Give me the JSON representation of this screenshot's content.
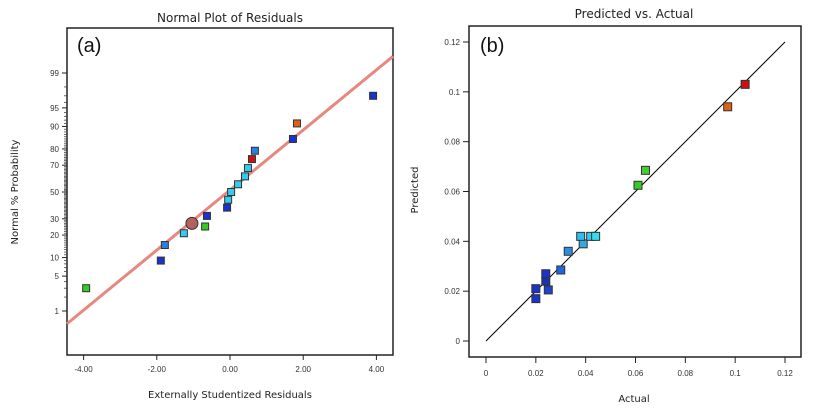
{
  "chart_data": [
    {
      "type": "scatter",
      "panel_label": "(a)",
      "title": "Normal Plot of Residuals",
      "xlabel": "Externally Studentized Residuals",
      "ylabel": "Normal % Probability",
      "xlim": [
        -4.4,
        4.4
      ],
      "x_ticks": [
        -4,
        -2,
        0,
        2,
        4
      ],
      "x_tick_labels": [
        "-4.00",
        "-2.00",
        "0.00",
        "2.00",
        "4.00"
      ],
      "y_scale": "normal-probability",
      "y_ticks": [
        1,
        5,
        10,
        20,
        30,
        50,
        70,
        80,
        90,
        95,
        99
      ],
      "y_tick_labels": [
        "1",
        "5",
        "10",
        "20",
        "30",
        "50",
        "70",
        "80",
        "90",
        "95",
        "99"
      ],
      "reference_line": {
        "color": "#e8877f",
        "from": [
          -4.4,
          0.5
        ],
        "to": [
          4.4,
          99.6
        ]
      },
      "points": [
        {
          "x": -3.93,
          "y": 3,
          "color": "#33cc22"
        },
        {
          "x": -1.89,
          "y": 9,
          "color": "#1a33cc"
        },
        {
          "x": -1.78,
          "y": 15,
          "color": "#2a7fe0"
        },
        {
          "x": -1.26,
          "y": 21,
          "color": "#33ccee"
        },
        {
          "x": -0.68,
          "y": 25,
          "color": "#33cc22"
        },
        {
          "x": -0.63,
          "y": 32,
          "color": "#1a33cc"
        },
        {
          "x": -0.08,
          "y": 38,
          "color": "#1a33cc"
        },
        {
          "x": -0.05,
          "y": 44,
          "color": "#33ccee"
        },
        {
          "x": 0.03,
          "y": 50,
          "color": "#33ccee"
        },
        {
          "x": 0.22,
          "y": 56,
          "color": "#33ccee"
        },
        {
          "x": 0.41,
          "y": 62,
          "color": "#33ccee"
        },
        {
          "x": 0.49,
          "y": 68,
          "color": "#33ccee"
        },
        {
          "x": 0.6,
          "y": 74,
          "color": "#cc1111"
        },
        {
          "x": 0.68,
          "y": 79,
          "color": "#2a7fe0"
        },
        {
          "x": 1.72,
          "y": 85,
          "color": "#1a33cc"
        },
        {
          "x": 1.83,
          "y": 91,
          "color": "#e0601a"
        },
        {
          "x": 3.91,
          "y": 97,
          "color": "#1a33cc"
        }
      ],
      "highlight_point": {
        "x": -1.04,
        "y": 27,
        "color": "#b5605a"
      }
    },
    {
      "type": "scatter",
      "panel_label": "(b)",
      "title": "Predicted vs. Actual",
      "xlabel": "Actual",
      "ylabel": "Predicted",
      "xlim": [
        -0.002,
        0.122
      ],
      "ylim": [
        -0.01,
        0.12
      ],
      "x_ticks": [
        0,
        0.02,
        0.04,
        0.06,
        0.08,
        0.1,
        0.12
      ],
      "x_tick_labels": [
        "0",
        "0.02",
        "0.04",
        "0.06",
        "0.08",
        "0.1",
        "0.12"
      ],
      "y_ticks": [
        0,
        0.02,
        0.04,
        0.06,
        0.08,
        0.1,
        0.12
      ],
      "y_tick_labels": [
        "0",
        "0.02",
        "0.04",
        "0.06",
        "0.08",
        "0.1",
        "0.12"
      ],
      "reference_line": {
        "color": "#000000",
        "from": [
          0,
          0
        ],
        "to": [
          0.12,
          0.12
        ]
      },
      "points": [
        {
          "x": 0.02,
          "y": 0.017,
          "color": "#1a33cc"
        },
        {
          "x": 0.02,
          "y": 0.021,
          "color": "#1a33cc"
        },
        {
          "x": 0.025,
          "y": 0.0205,
          "color": "#1a44cc"
        },
        {
          "x": 0.024,
          "y": 0.024,
          "color": "#1a33aa"
        },
        {
          "x": 0.024,
          "y": 0.027,
          "color": "#1a33cc"
        },
        {
          "x": 0.03,
          "y": 0.0285,
          "color": "#2266dd"
        },
        {
          "x": 0.033,
          "y": 0.036,
          "color": "#2a8fe0"
        },
        {
          "x": 0.039,
          "y": 0.039,
          "color": "#33aadd"
        },
        {
          "x": 0.038,
          "y": 0.042,
          "color": "#33bbee"
        },
        {
          "x": 0.042,
          "y": 0.042,
          "color": "#33ccee"
        },
        {
          "x": 0.044,
          "y": 0.042,
          "color": "#33ddee"
        },
        {
          "x": 0.061,
          "y": 0.0625,
          "color": "#33cc22"
        },
        {
          "x": 0.064,
          "y": 0.0685,
          "color": "#44cc33"
        },
        {
          "x": 0.097,
          "y": 0.094,
          "color": "#e0601a"
        },
        {
          "x": 0.104,
          "y": 0.103,
          "color": "#cc1111"
        }
      ]
    }
  ]
}
